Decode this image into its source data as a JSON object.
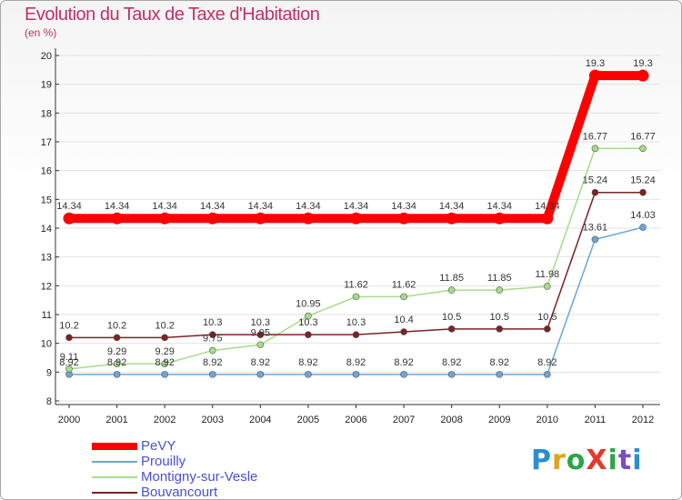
{
  "header": {
    "title": "Evolution du Taux de Taxe d'Habitation",
    "subtitle": "(en %)"
  },
  "logo": {
    "text": "ProXiti",
    "colors": [
      "#2b8fd0",
      "#e2a21a",
      "#2ca44a",
      "#e23a2a",
      "#2ca44a",
      "#7b4fc0",
      "#2b8fd0"
    ]
  },
  "chart_data": {
    "type": "line",
    "title": "Evolution du Taux de Taxe d'Habitation",
    "ylabel": "(en %)",
    "xlabel": "",
    "ylim": [
      8,
      20
    ],
    "yticks": [
      "8",
      "9",
      "10",
      "11",
      "12",
      "13",
      "14",
      "15",
      "16",
      "17",
      "18",
      "19",
      "20"
    ],
    "categories": [
      "2000",
      "2001",
      "2002",
      "2003",
      "2004",
      "2005",
      "2006",
      "2007",
      "2008",
      "2009",
      "2010",
      "2011",
      "2012"
    ],
    "grid": true,
    "legend": "bottom-left",
    "series": [
      {
        "name": "PeVY",
        "color": "#ff0000",
        "values": [
          14.34,
          14.34,
          14.34,
          14.34,
          14.34,
          14.34,
          14.34,
          14.34,
          14.34,
          14.34,
          14.34,
          19.3,
          19.3
        ],
        "labels": [
          "14.34",
          "14.34",
          "14.34",
          "14.34",
          "14.34",
          "14.34",
          "14.34",
          "14.34",
          "14.34",
          "14.34",
          "14.34",
          "19.3",
          "19.3"
        ]
      },
      {
        "name": "Prouilly",
        "color": "#6aa6d8",
        "values": [
          8.92,
          8.92,
          8.92,
          8.92,
          8.92,
          8.92,
          8.92,
          8.92,
          8.92,
          8.92,
          8.92,
          13.61,
          14.03
        ],
        "labels": [
          "8.92",
          "8.92",
          "8.92",
          "8.92",
          "8.92",
          "8.92",
          "8.92",
          "8.92",
          "8.92",
          "8.92",
          "8.92",
          "13.61",
          "14.03"
        ]
      },
      {
        "name": "Montigny-sur-Vesle",
        "color": "#a6dc8a",
        "values": [
          9.11,
          9.29,
          9.29,
          9.75,
          9.95,
          10.95,
          11.62,
          11.62,
          11.85,
          11.85,
          11.98,
          16.77,
          16.77
        ],
        "labels": [
          "9.11",
          "9.29",
          "9.29",
          "9.75",
          "9.95",
          "10.95",
          "11.62",
          "11.62",
          "11.85",
          "11.85",
          "11.98",
          "16.77",
          "16.77"
        ]
      },
      {
        "name": "Bouvancourt",
        "color": "#7a2323",
        "values": [
          10.2,
          10.2,
          10.2,
          10.3,
          10.3,
          10.3,
          10.3,
          10.4,
          10.5,
          10.5,
          10.5,
          15.24,
          15.24
        ],
        "labels": [
          "10.2",
          "10.2",
          "10.2",
          "10.3",
          "10.3",
          "10.3",
          "10.3",
          "10.4",
          "10.5",
          "10.5",
          "10.5",
          "15.24",
          "15.24"
        ]
      }
    ]
  }
}
